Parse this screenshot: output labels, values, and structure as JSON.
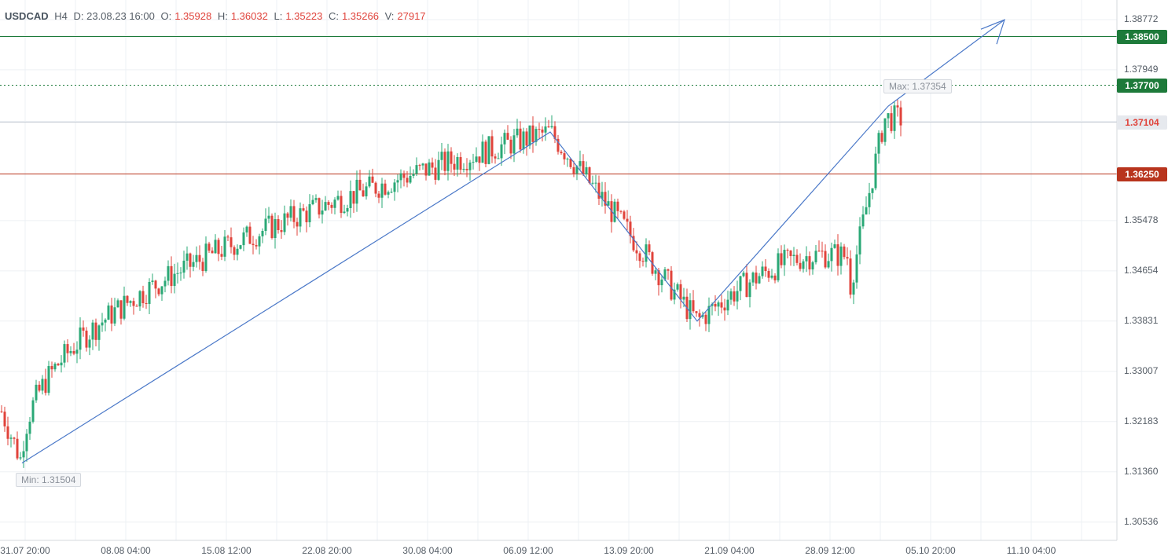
{
  "header": {
    "symbol": "USDCAD",
    "timeframe": "H4",
    "date": "D: 23.08.23 16:00",
    "open_label": "O:",
    "open": "1.35928",
    "high_label": "H:",
    "high": "1.36032",
    "low_label": "L:",
    "low": "1.35223",
    "close_label": "C:",
    "close": "1.35266",
    "volume_label": "V:",
    "volume": "27917"
  },
  "chart_data": {
    "type": "candlestick",
    "symbol": "USDCAD",
    "timeframe": "H4",
    "y_ticks": [
      "1.38772",
      "1.37949",
      "1.37104",
      "1.35478",
      "1.34654",
      "1.33831",
      "1.33007",
      "1.32183",
      "1.31360",
      "1.30536"
    ],
    "x_ticks": [
      "31.07 20:00",
      "08.08 04:00",
      "15.08 12:00",
      "22.08 20:00",
      "30.08 04:00",
      "06.09 12:00",
      "13.09 20:00",
      "21.09 04:00",
      "28.09 12:00",
      "05.10 20:00",
      "11.10 04:00"
    ],
    "ylim": [
      1.3015,
      1.3917
    ],
    "grid": true,
    "current_price": {
      "label": "1.37104",
      "value": 1.37104
    },
    "levels": [
      {
        "label": "1.38500",
        "value": 1.385,
        "color": "#1d7a3a",
        "style": "solid"
      },
      {
        "label": "1.37700",
        "value": 1.377,
        "color": "#1d7a3a",
        "style": "dotted"
      },
      {
        "label": "1.36250",
        "value": 1.3625,
        "color": "#b8341d",
        "style": "solid"
      }
    ],
    "annotations": {
      "max_label": "Max: 1.37354",
      "min_label": "Min: 1.31504"
    },
    "key_points": [
      {
        "time": "31.07 20:00",
        "price": 1.31504
      },
      {
        "time": "06.09 16:00",
        "price": 1.3693
      },
      {
        "time": "19.09 08:00",
        "price": 1.3383
      },
      {
        "time": "03.10 00:00",
        "price": 1.37354
      },
      {
        "time": "11.10 04:00",
        "price": 1.3877
      }
    ],
    "colors": {
      "up": "#2aa876",
      "down": "#e0433b",
      "trendline": "#4a78c8"
    }
  }
}
